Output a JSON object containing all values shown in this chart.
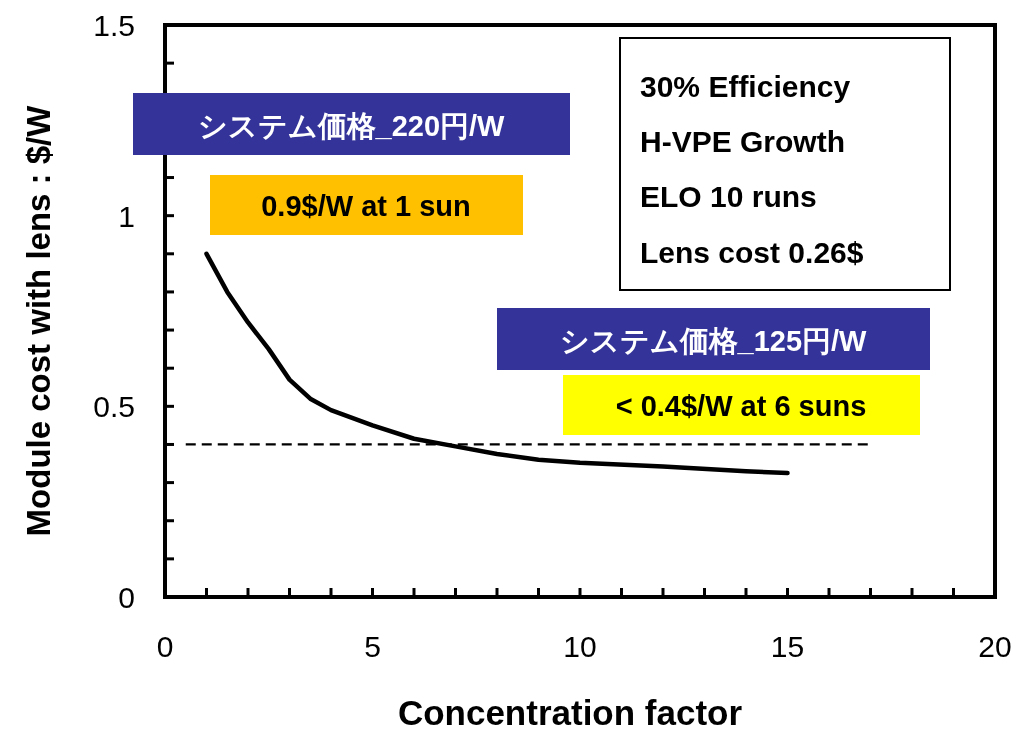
{
  "chart_data": {
    "type": "line",
    "xlabel": "Concentration factor",
    "ylabel": "Module cost with lens : $/W",
    "xlim": [
      0,
      20
    ],
    "ylim": [
      0,
      1.5
    ],
    "xticks": [
      0,
      {
        "value": 1,
        "label": null
      },
      {
        "value": 2,
        "label": null
      },
      {
        "value": 3,
        "label": null
      },
      {
        "value": 4,
        "label": null
      },
      5,
      {
        "value": 6,
        "label": null
      },
      {
        "value": 7,
        "label": null
      },
      {
        "value": 8,
        "label": null
      },
      {
        "value": 9,
        "label": null
      },
      10,
      {
        "value": 11,
        "label": null
      },
      {
        "value": 12,
        "label": null
      },
      {
        "value": 13,
        "label": null
      },
      {
        "value": 14,
        "label": null
      },
      15,
      {
        "value": 16,
        "label": null
      },
      {
        "value": 17,
        "label": null
      },
      {
        "value": 18,
        "label": null
      },
      {
        "value": 19,
        "label": null
      },
      20
    ],
    "yticks": [
      0,
      {
        "value": 0.1,
        "label": null
      },
      {
        "value": 0.2,
        "label": null
      },
      {
        "value": 0.3,
        "label": null
      },
      {
        "value": 0.4,
        "label": null
      },
      0.5,
      {
        "value": 0.6,
        "label": null
      },
      {
        "value": 0.7,
        "label": null
      },
      {
        "value": 0.8,
        "label": null
      },
      {
        "value": 0.9,
        "label": null
      },
      1,
      {
        "value": 1.1,
        "label": null
      },
      {
        "value": 1.2,
        "label": null
      },
      {
        "value": 1.3,
        "label": null
      },
      {
        "value": 1.4,
        "label": null
      },
      1.5
    ],
    "series": [
      {
        "color": "#000000",
        "line_style": "solid",
        "x": [
          1,
          1.5,
          2,
          2.5,
          3,
          3.5,
          4,
          5,
          6,
          7,
          8,
          9,
          10,
          12,
          14,
          15
        ],
        "values": [
          0.9,
          0.8,
          0.72,
          0.65,
          0.57,
          0.52,
          0.49,
          0.45,
          0.415,
          0.395,
          0.375,
          0.36,
          0.352,
          0.342,
          0.33,
          0.325
        ]
      },
      {
        "color": "#000000",
        "line_style": "dashed",
        "x": [
          0.5,
          17
        ],
        "values": [
          0.4,
          0.4
        ]
      }
    ],
    "annotations": [
      "システム価格_220円/W",
      "0.9$/W at 1 sun",
      "システム価格_125円/W",
      "< 0.4$/W at 6 suns",
      "30% Efficiency",
      "H-VPE Growth",
      "ELO 10 runs",
      "Lens cost 0.26$"
    ],
    "grid": false,
    "marker": "none"
  }
}
